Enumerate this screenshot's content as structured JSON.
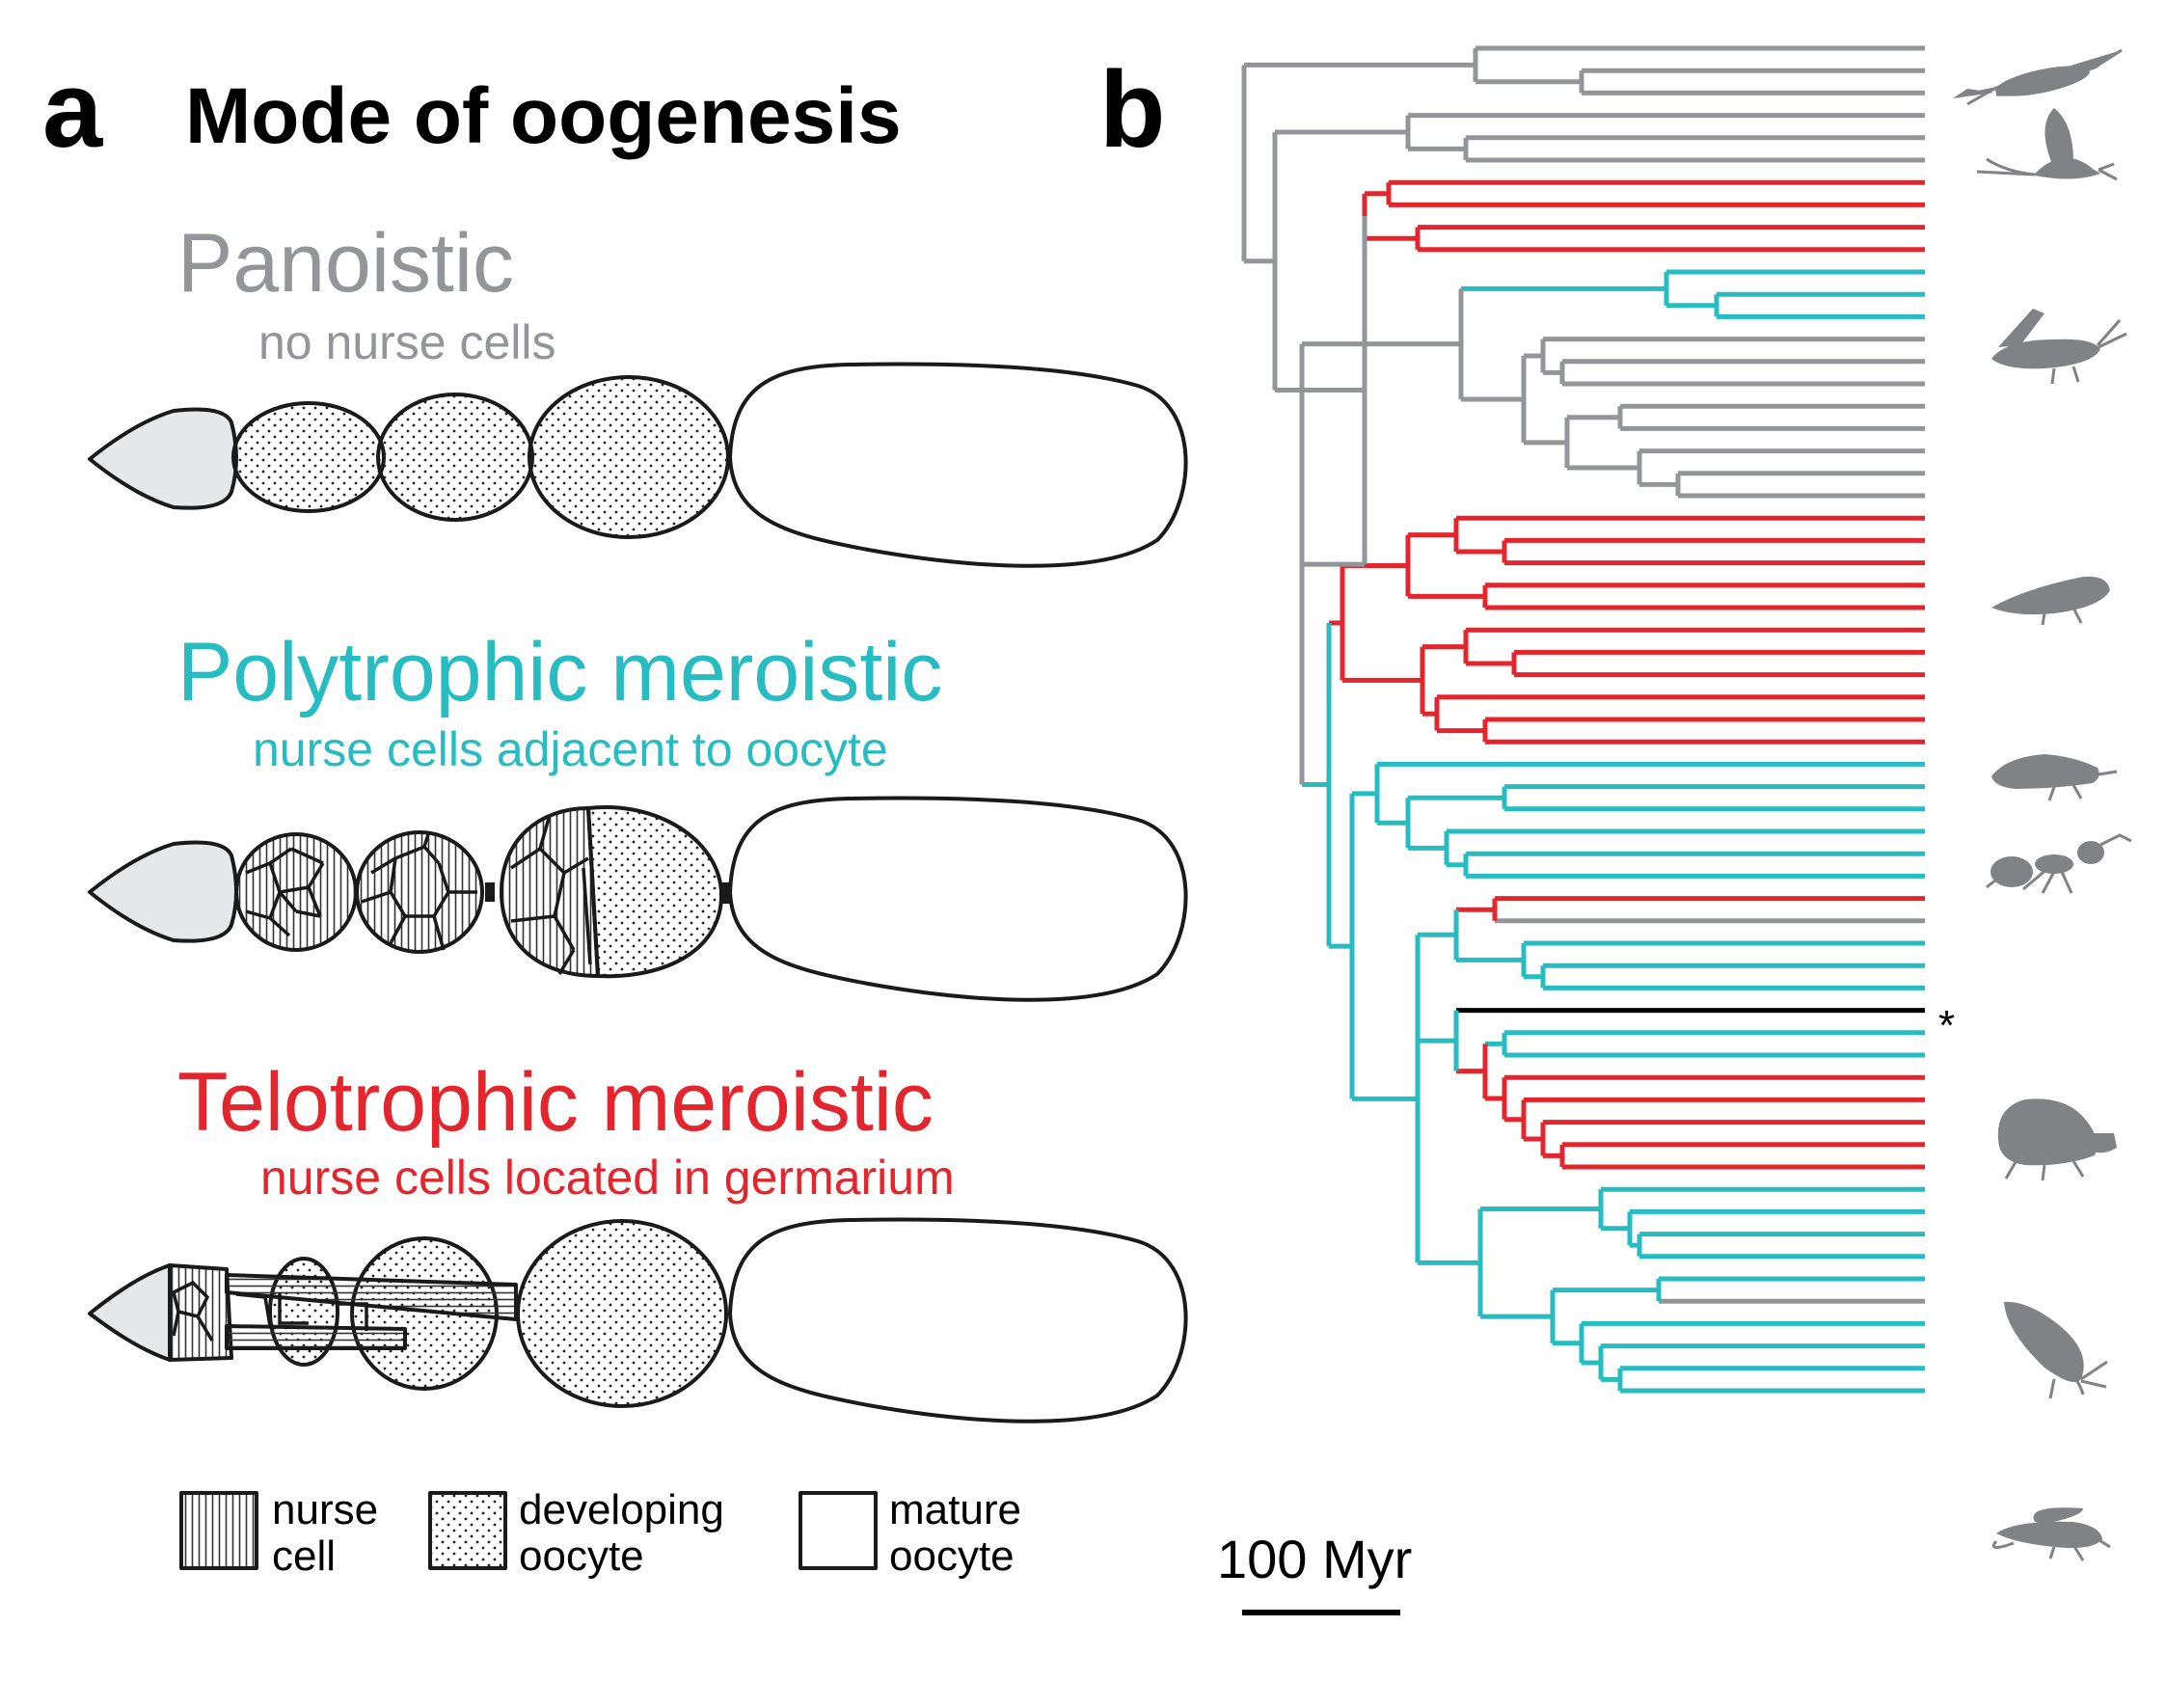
{
  "panel_a": {
    "letter": "a",
    "title": "Mode of oogenesis",
    "modes": [
      {
        "name": "Panoistic",
        "description": "no nurse cells",
        "color": "#939598"
      },
      {
        "name": "Polytrophic meroistic",
        "description": "nurse cells adjacent to oocyte",
        "color": "#27bcc1"
      },
      {
        "name": "Telotrophic meroistic",
        "description": "nurse cells located in germarium",
        "color": "#e3262d"
      }
    ],
    "legend": [
      {
        "line1": "nurse",
        "line2": "cell"
      },
      {
        "line1": "developing",
        "line2": "oocyte"
      },
      {
        "line1": "mature",
        "line2": "oocyte"
      }
    ]
  },
  "panel_b": {
    "letter": "b",
    "scale_label": "100 Myr",
    "asterisk": "*",
    "colors": {
      "panoistic": "#939598",
      "polytrophic": "#27bcc1",
      "telotrophic": "#e3262d",
      "other": "#000000"
    },
    "silhouettes": [
      "silverfish-icon",
      "mayfly-icon",
      "grasshopper-icon",
      "bug-icon",
      "thrips-icon",
      "ant-icon",
      "beetle-icon",
      "butterfly-icon",
      "fly-icon"
    ]
  }
}
